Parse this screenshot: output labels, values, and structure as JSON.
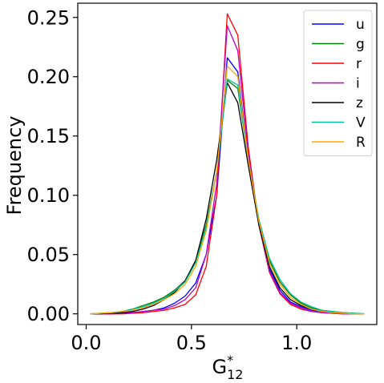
{
  "chart_data": {
    "type": "line",
    "xlabel": "G",
    "xlabel_sub": "12",
    "xlabel_sup": "*",
    "ylabel": "Frequency",
    "xlim": [
      -0.04,
      1.38
    ],
    "ylim": [
      -0.009,
      0.262
    ],
    "xticks": [
      0.0,
      0.5,
      1.0
    ],
    "xtick_labels": [
      "0.0",
      "0.5",
      "1.0"
    ],
    "yticks": [
      0.0,
      0.05,
      0.1,
      0.15,
      0.2,
      0.25
    ],
    "ytick_labels": [
      "0.00",
      "0.05",
      "0.10",
      "0.15",
      "0.20",
      "0.25"
    ],
    "grid": false,
    "legend_position": "upper-right",
    "x": [
      0.02,
      0.07,
      0.12,
      0.17,
      0.22,
      0.27,
      0.32,
      0.37,
      0.42,
      0.47,
      0.52,
      0.57,
      0.62,
      0.67,
      0.72,
      0.77,
      0.82,
      0.87,
      0.92,
      0.97,
      1.02,
      1.07,
      1.12,
      1.17,
      1.22,
      1.27,
      1.32
    ],
    "series": [
      {
        "name": "u",
        "color": "#0000ff",
        "values": [
          0.0,
          0.0,
          0.0,
          0.0005,
          0.001,
          0.002,
          0.003,
          0.005,
          0.009,
          0.015,
          0.026,
          0.05,
          0.1,
          0.216,
          0.204,
          0.13,
          0.075,
          0.038,
          0.02,
          0.01,
          0.006,
          0.003,
          0.002,
          0.001,
          0.0005,
          0.0,
          0.0
        ]
      },
      {
        "name": "g",
        "color": "#008000",
        "values": [
          0.0,
          0.0005,
          0.001,
          0.002,
          0.004,
          0.007,
          0.01,
          0.014,
          0.02,
          0.028,
          0.045,
          0.075,
          0.12,
          0.197,
          0.19,
          0.13,
          0.078,
          0.045,
          0.027,
          0.016,
          0.009,
          0.005,
          0.003,
          0.002,
          0.001,
          0.0005,
          0.0
        ]
      },
      {
        "name": "r",
        "color": "#ff0000",
        "values": [
          0.0,
          0.0,
          0.0,
          0.0,
          0.0005,
          0.001,
          0.002,
          0.003,
          0.005,
          0.008,
          0.016,
          0.04,
          0.1,
          0.253,
          0.235,
          0.14,
          0.075,
          0.035,
          0.017,
          0.008,
          0.004,
          0.002,
          0.001,
          0.0005,
          0.0,
          0.0,
          0.0
        ]
      },
      {
        "name": "i",
        "color": "#bf00bf",
        "values": [
          0.0,
          0.0,
          0.0,
          0.0005,
          0.001,
          0.002,
          0.003,
          0.004,
          0.007,
          0.012,
          0.022,
          0.05,
          0.11,
          0.243,
          0.222,
          0.135,
          0.075,
          0.036,
          0.018,
          0.009,
          0.005,
          0.002,
          0.001,
          0.0005,
          0.0,
          0.0,
          0.0
        ]
      },
      {
        "name": "z",
        "color": "#000000",
        "values": [
          0.0,
          0.0,
          0.0005,
          0.001,
          0.002,
          0.004,
          0.007,
          0.012,
          0.018,
          0.028,
          0.045,
          0.08,
          0.13,
          0.195,
          0.178,
          0.125,
          0.075,
          0.04,
          0.022,
          0.012,
          0.007,
          0.004,
          0.002,
          0.001,
          0.0005,
          0.0,
          0.0
        ]
      },
      {
        "name": "V",
        "color": "#00bfa0",
        "values": [
          0.0,
          0.0005,
          0.001,
          0.002,
          0.004,
          0.006,
          0.009,
          0.013,
          0.019,
          0.027,
          0.043,
          0.073,
          0.12,
          0.198,
          0.193,
          0.13,
          0.08,
          0.047,
          0.029,
          0.017,
          0.01,
          0.006,
          0.003,
          0.002,
          0.001,
          0.0005,
          0.0
        ]
      },
      {
        "name": "R",
        "color": "#ffa500",
        "values": [
          0.0,
          0.0005,
          0.001,
          0.002,
          0.003,
          0.005,
          0.008,
          0.012,
          0.017,
          0.025,
          0.04,
          0.07,
          0.12,
          0.209,
          0.2,
          0.13,
          0.078,
          0.043,
          0.025,
          0.014,
          0.008,
          0.004,
          0.002,
          0.001,
          0.0005,
          0.0,
          0.0
        ]
      }
    ]
  }
}
